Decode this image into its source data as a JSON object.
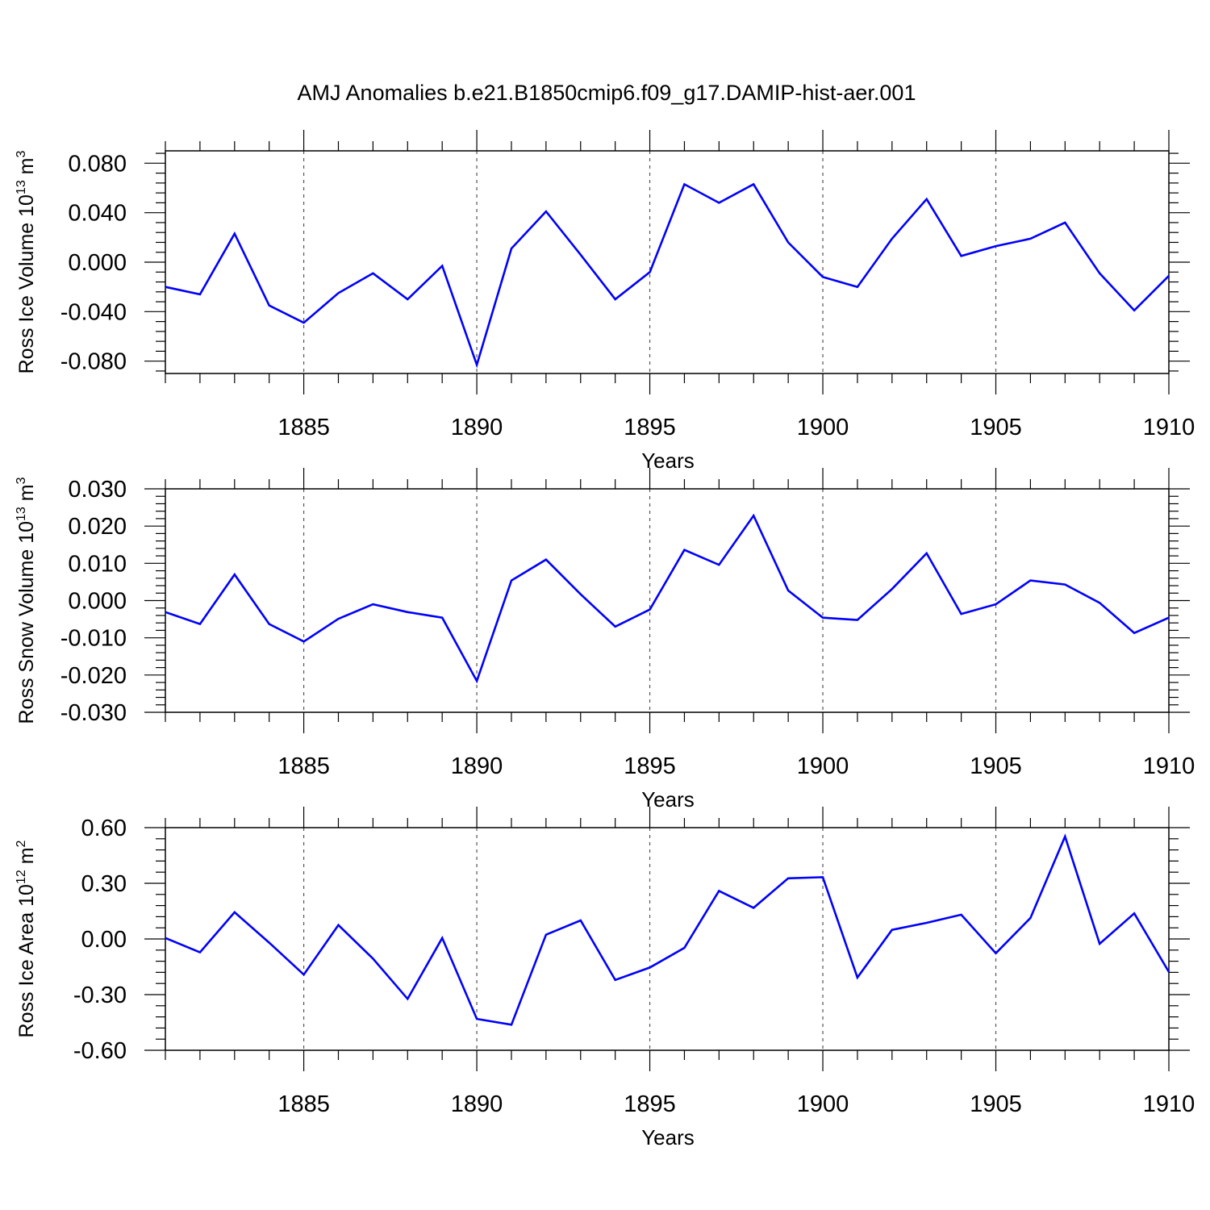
{
  "figure_title": "AMJ Anomalies b.e21.B1850cmip6.f09_g17.DAMIP-hist-aer.001",
  "colors": {
    "line": "#0000ff",
    "axes": "#000000",
    "grid": "#555555"
  },
  "chart_data": [
    {
      "type": "line",
      "title": "",
      "xlabel": "Years",
      "ylabel": "Ross Ice Volume 10",
      "ylabel_sup": "13",
      "ylabel_unit": " m",
      "ylabel_unit_sup": "3",
      "xlim": [
        1881,
        1910
      ],
      "ylim": [
        -0.09,
        0.09
      ],
      "xticks": [
        "1885",
        "1890",
        "1895",
        "1900",
        "1905",
        "1910"
      ],
      "xtick_values": [
        1885,
        1890,
        1895,
        1900,
        1905,
        1910
      ],
      "yticks": [
        "-0.080",
        "-0.040",
        "0.000",
        "0.040",
        "0.080"
      ],
      "ytick_values": [
        -0.08,
        -0.04,
        0.0,
        0.04,
        0.08
      ],
      "grid": "dashed vertical at major x ticks",
      "x": [
        1881,
        1882,
        1883,
        1884,
        1885,
        1886,
        1887,
        1888,
        1889,
        1890,
        1891,
        1892,
        1893,
        1894,
        1895,
        1896,
        1897,
        1898,
        1899,
        1900,
        1901,
        1902,
        1903,
        1904,
        1905,
        1906,
        1907,
        1908,
        1909,
        1910
      ],
      "series": [
        {
          "values": [
            -0.02,
            -0.026,
            0.023,
            -0.035,
            -0.049,
            -0.025,
            -0.009,
            -0.03,
            -0.003,
            -0.083,
            0.011,
            0.041,
            0.006,
            -0.03,
            -0.008,
            0.063,
            0.048,
            0.063,
            0.016,
            -0.012,
            -0.02,
            0.019,
            0.051,
            0.005,
            0.013,
            0.019,
            0.032,
            -0.009,
            -0.039,
            -0.011
          ]
        }
      ]
    },
    {
      "type": "line",
      "title": "",
      "xlabel": "Years",
      "ylabel": "Ross Snow Volume 10",
      "ylabel_sup": "13",
      "ylabel_unit": " m",
      "ylabel_unit_sup": "3",
      "xlim": [
        1881,
        1910
      ],
      "ylim": [
        -0.03,
        0.03
      ],
      "xticks": [
        "1885",
        "1890",
        "1895",
        "1900",
        "1905",
        "1910"
      ],
      "xtick_values": [
        1885,
        1890,
        1895,
        1900,
        1905,
        1910
      ],
      "yticks": [
        "-0.030",
        "-0.020",
        "-0.010",
        "0.000",
        "0.010",
        "0.020",
        "0.030"
      ],
      "ytick_values": [
        -0.03,
        -0.02,
        -0.01,
        0.0,
        0.01,
        0.02,
        0.03
      ],
      "grid": "dashed vertical at major x ticks",
      "x": [
        1881,
        1882,
        1883,
        1884,
        1885,
        1886,
        1887,
        1888,
        1889,
        1890,
        1891,
        1892,
        1893,
        1894,
        1895,
        1896,
        1897,
        1898,
        1899,
        1900,
        1901,
        1902,
        1903,
        1904,
        1905,
        1906,
        1907,
        1908,
        1909,
        1910
      ],
      "series": [
        {
          "values": [
            -0.0031,
            -0.0063,
            0.007,
            -0.0063,
            -0.011,
            -0.0049,
            -0.001,
            -0.0031,
            -0.0046,
            -0.0216,
            0.0054,
            0.011,
            0.0017,
            -0.007,
            -0.0024,
            0.0136,
            0.0096,
            0.0228,
            0.0027,
            -0.0046,
            -0.0052,
            0.0031,
            0.0127,
            -0.0036,
            -0.001,
            0.0054,
            0.0043,
            -0.0006,
            -0.0087,
            -0.0046
          ]
        }
      ]
    },
    {
      "type": "line",
      "title": "",
      "xlabel": "Years",
      "ylabel": "Ross Ice Area 10",
      "ylabel_sup": "12",
      "ylabel_unit": " m",
      "ylabel_unit_sup": "2",
      "xlim": [
        1881,
        1910
      ],
      "ylim": [
        -0.6,
        0.6
      ],
      "xticks": [
        "1885",
        "1890",
        "1895",
        "1900",
        "1905",
        "1910"
      ],
      "xtick_values": [
        1885,
        1890,
        1895,
        1900,
        1905,
        1910
      ],
      "yticks": [
        "-0.60",
        "-0.30",
        "0.00",
        "0.30",
        "0.60"
      ],
      "ytick_values": [
        -0.6,
        -0.3,
        0.0,
        0.3,
        0.6
      ],
      "grid": "dashed vertical at major x ticks",
      "x": [
        1881,
        1882,
        1883,
        1884,
        1885,
        1886,
        1887,
        1888,
        1889,
        1890,
        1891,
        1892,
        1893,
        1894,
        1895,
        1896,
        1897,
        1898,
        1899,
        1900,
        1901,
        1902,
        1903,
        1904,
        1905,
        1906,
        1907,
        1908,
        1909,
        1910
      ],
      "series": [
        {
          "values": [
            0.005,
            -0.072,
            0.144,
            -0.02,
            -0.192,
            0.075,
            -0.106,
            -0.323,
            0.005,
            -0.431,
            -0.462,
            0.023,
            0.1,
            -0.221,
            -0.154,
            -0.048,
            0.259,
            0.168,
            0.327,
            0.333,
            -0.208,
            0.049,
            0.087,
            0.131,
            -0.077,
            0.113,
            0.552,
            -0.026,
            0.138,
            -0.178
          ]
        }
      ]
    }
  ]
}
